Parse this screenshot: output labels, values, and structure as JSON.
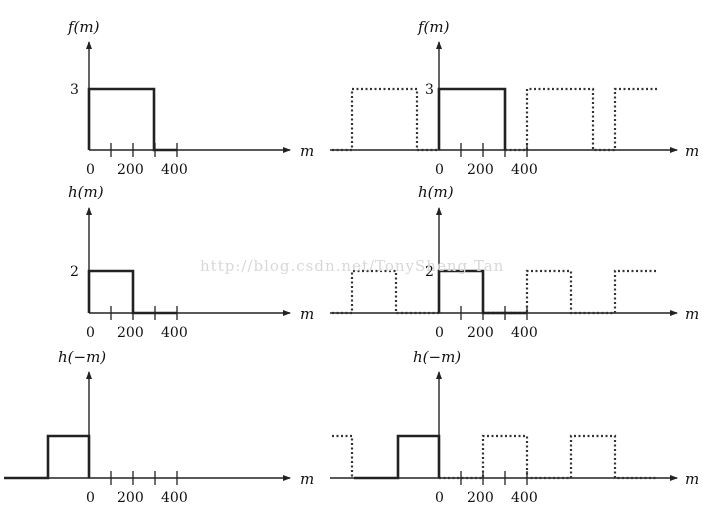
{
  "watermark": "http://blog.csdn.net/TonySheng Tan",
  "panels": {
    "a": {
      "ylabel": "f(m)",
      "xlabel": "m",
      "amp": "3",
      "ticks": [
        "0",
        "200",
        "400"
      ]
    },
    "b": {
      "ylabel": "f(m)",
      "xlabel": "m",
      "amp": "3",
      "ticks": [
        "0",
        "200",
        "400"
      ]
    },
    "c": {
      "ylabel": "h(m)",
      "xlabel": "m",
      "amp": "2",
      "ticks": [
        "0",
        "200",
        "400"
      ]
    },
    "d": {
      "ylabel": "h(m)",
      "xlabel": "m",
      "amp": "2",
      "ticks": [
        "0",
        "200",
        "400"
      ]
    },
    "e": {
      "ylabel": "h(−m)",
      "xlabel": "m",
      "ticks": [
        "0",
        "200",
        "400"
      ]
    },
    "f": {
      "ylabel": "h(−m)",
      "xlabel": "m",
      "ticks": [
        "0",
        "200",
        "400"
      ]
    }
  }
}
